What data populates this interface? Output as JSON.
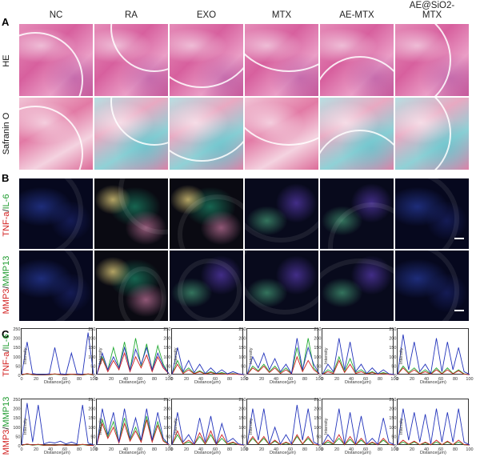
{
  "panel_letters": [
    "A",
    "B",
    "C"
  ],
  "groups": [
    "NC",
    "RA",
    "EXO",
    "MTX",
    "AE-MTX",
    "AE@SiO2-MTX"
  ],
  "group_header_lines": [
    [
      "NC"
    ],
    [
      "RA"
    ],
    [
      "EXO"
    ],
    [
      "MTX"
    ],
    [
      "AE-MTX"
    ],
    [
      "AE@SiO2-",
      "MTX"
    ]
  ],
  "row_labels": {
    "he": "HE",
    "safranin": "Safranin O",
    "row2_part1": "TNF-a",
    "row2_sep": "/",
    "row2_part2": "IL-6",
    "row3_part1": "MMP3",
    "row3_sep": "/",
    "row3_part2": "MMP13"
  },
  "plot_axes": {
    "x_label": "Distance(μm)",
    "y_label": "Intensity",
    "y_ticks_row1": [
      "250",
      "200",
      "150",
      "100",
      "50",
      "0"
    ],
    "y_ticks_row2": [
      "250",
      "200",
      "150",
      "100",
      "50",
      "0"
    ],
    "x_ticks": [
      "0",
      "20",
      "40",
      "60",
      "80",
      "100"
    ]
  },
  "chart_data": [
    {
      "type": "line",
      "row": "TNF-a/IL-6",
      "xlabel": "Distance(μm)",
      "ylabel": "Intensity",
      "xlim": [
        0,
        100
      ],
      "ylim": [
        0,
        250
      ],
      "colors": {
        "blue": "#2233bb",
        "red": "#d02020",
        "green": "#22aa33"
      },
      "panels": [
        {
          "group": "NC",
          "blue": [
            5,
            180,
            10,
            5,
            5,
            8,
            150,
            8,
            6,
            120,
            8,
            6,
            230,
            5
          ],
          "red": [
            3,
            10,
            4,
            3,
            3,
            4,
            8,
            4,
            3,
            6,
            4,
            3,
            8,
            3
          ],
          "green": [
            2,
            8,
            3,
            2,
            2,
            3,
            6,
            3,
            2,
            5,
            3,
            2,
            6,
            2
          ]
        },
        {
          "group": "RA",
          "blue": [
            5,
            120,
            30,
            100,
            40,
            150,
            30,
            140,
            60,
            150,
            30,
            120,
            50,
            10
          ],
          "red": [
            5,
            90,
            20,
            80,
            30,
            120,
            20,
            100,
            40,
            110,
            20,
            100,
            40,
            8
          ],
          "green": [
            5,
            100,
            30,
            150,
            40,
            180,
            30,
            200,
            50,
            170,
            30,
            160,
            60,
            8
          ]
        },
        {
          "group": "EXO",
          "blue": [
            5,
            150,
            20,
            80,
            15,
            60,
            10,
            40,
            10,
            30,
            8,
            20,
            8,
            5
          ],
          "red": [
            5,
            60,
            10,
            30,
            8,
            20,
            6,
            15,
            6,
            10,
            5,
            8,
            5,
            4
          ],
          "green": [
            5,
            80,
            15,
            40,
            10,
            25,
            8,
            20,
            8,
            15,
            6,
            10,
            6,
            4
          ]
        },
        {
          "group": "MTX",
          "blue": [
            5,
            100,
            40,
            120,
            30,
            90,
            20,
            60,
            10,
            200,
            30,
            150,
            60,
            10
          ],
          "red": [
            5,
            40,
            20,
            50,
            15,
            40,
            10,
            30,
            8,
            100,
            20,
            80,
            30,
            8
          ],
          "green": [
            5,
            50,
            25,
            60,
            20,
            50,
            15,
            40,
            10,
            150,
            25,
            200,
            40,
            8
          ]
        },
        {
          "group": "AE-MTX",
          "blue": [
            5,
            60,
            20,
            200,
            30,
            180,
            20,
            60,
            10,
            40,
            8,
            30,
            8,
            5
          ],
          "red": [
            5,
            20,
            10,
            80,
            15,
            60,
            10,
            20,
            6,
            15,
            5,
            10,
            5,
            4
          ],
          "green": [
            5,
            30,
            15,
            100,
            20,
            90,
            15,
            30,
            8,
            20,
            6,
            15,
            6,
            4
          ]
        },
        {
          "group": "AE@SiO2-MTX",
          "blue": [
            5,
            220,
            30,
            180,
            20,
            60,
            10,
            200,
            20,
            180,
            30,
            150,
            20,
            5
          ],
          "red": [
            5,
            40,
            10,
            30,
            8,
            20,
            6,
            30,
            8,
            30,
            8,
            25,
            6,
            4
          ],
          "green": [
            5,
            50,
            15,
            40,
            10,
            30,
            8,
            40,
            10,
            40,
            10,
            30,
            8,
            4
          ]
        }
      ]
    },
    {
      "type": "line",
      "row": "MMP3/MMP13",
      "xlabel": "Distance(μm)",
      "ylabel": "Intensity",
      "xlim": [
        0,
        100
      ],
      "ylim": [
        0,
        250
      ],
      "colors": {
        "blue": "#2233bb",
        "red": "#d02020",
        "green": "#22aa33"
      },
      "panels": [
        {
          "group": "NC",
          "blue": [
            5,
            230,
            20,
            220,
            10,
            20,
            15,
            25,
            10,
            20,
            10,
            220,
            15,
            5
          ],
          "red": [
            3,
            10,
            4,
            8,
            3,
            4,
            3,
            5,
            3,
            4,
            3,
            8,
            3,
            2
          ],
          "green": [
            2,
            8,
            3,
            6,
            2,
            3,
            2,
            4,
            2,
            3,
            2,
            6,
            2,
            2
          ]
        },
        {
          "group": "RA",
          "blue": [
            5,
            200,
            60,
            180,
            20,
            200,
            40,
            150,
            30,
            200,
            30,
            180,
            40,
            8
          ],
          "red": [
            5,
            120,
            40,
            100,
            15,
            120,
            25,
            80,
            20,
            140,
            20,
            110,
            25,
            6
          ],
          "green": [
            5,
            140,
            50,
            130,
            20,
            150,
            30,
            100,
            25,
            160,
            25,
            130,
            30,
            6
          ]
        },
        {
          "group": "EXO",
          "blue": [
            5,
            180,
            20,
            60,
            10,
            150,
            20,
            160,
            10,
            120,
            20,
            40,
            10,
            5
          ],
          "red": [
            5,
            80,
            10,
            30,
            6,
            70,
            10,
            80,
            6,
            60,
            10,
            20,
            6,
            4
          ],
          "green": [
            5,
            60,
            10,
            20,
            6,
            50,
            8,
            60,
            6,
            40,
            8,
            15,
            6,
            4
          ]
        },
        {
          "group": "MTX",
          "blue": [
            5,
            200,
            30,
            200,
            10,
            100,
            10,
            60,
            10,
            220,
            30,
            200,
            20,
            5
          ],
          "red": [
            5,
            50,
            10,
            50,
            6,
            30,
            6,
            20,
            6,
            60,
            10,
            50,
            8,
            4
          ],
          "green": [
            5,
            40,
            8,
            40,
            5,
            25,
            5,
            15,
            5,
            50,
            8,
            40,
            6,
            4
          ]
        },
        {
          "group": "AE-MTX",
          "blue": [
            5,
            60,
            20,
            200,
            10,
            180,
            10,
            160,
            10,
            40,
            8,
            150,
            20,
            5
          ],
          "red": [
            5,
            30,
            10,
            60,
            6,
            50,
            6,
            40,
            6,
            20,
            5,
            40,
            8,
            4
          ],
          "green": [
            5,
            20,
            8,
            40,
            5,
            35,
            5,
            30,
            5,
            15,
            5,
            30,
            6,
            4
          ]
        },
        {
          "group": "AE@SiO2-MTX",
          "blue": [
            5,
            200,
            30,
            180,
            20,
            170,
            10,
            200,
            20,
            180,
            20,
            200,
            20,
            5
          ],
          "red": [
            5,
            30,
            8,
            25,
            6,
            20,
            5,
            30,
            6,
            25,
            6,
            30,
            6,
            4
          ],
          "green": [
            5,
            20,
            6,
            20,
            5,
            15,
            5,
            20,
            5,
            20,
            5,
            20,
            5,
            4
          ]
        }
      ]
    }
  ]
}
